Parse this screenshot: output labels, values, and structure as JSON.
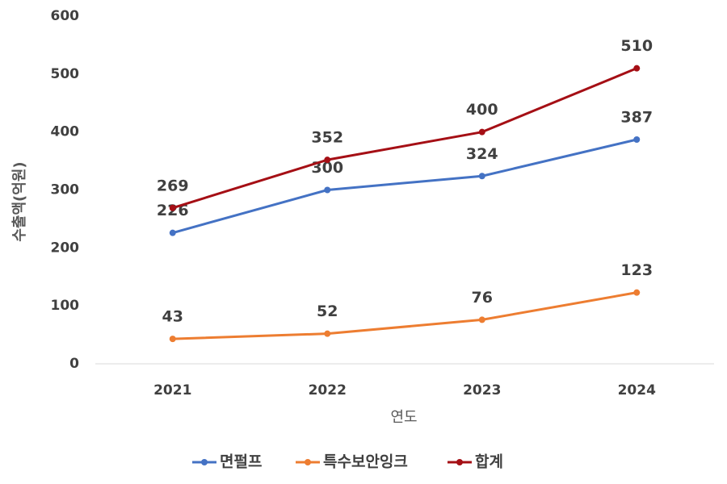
{
  "chart_data": {
    "type": "line",
    "x_label": "연도",
    "y_label": "수출액(억원)",
    "categories": [
      "2021",
      "2022",
      "2023",
      "2024"
    ],
    "series": [
      {
        "name": "면펄프",
        "color": "#4472c4",
        "values": [
          226,
          300,
          324,
          387
        ]
      },
      {
        "name": "특수보안잉크",
        "color": "#ed7d31",
        "values": [
          43,
          52,
          76,
          123
        ]
      },
      {
        "name": "합계",
        "color": "#a50f15",
        "values": [
          269,
          352,
          400,
          510
        ]
      }
    ],
    "ylim": [
      0,
      600
    ],
    "yticks": [
      0,
      100,
      200,
      300,
      400,
      500,
      600
    ],
    "grid": false
  }
}
